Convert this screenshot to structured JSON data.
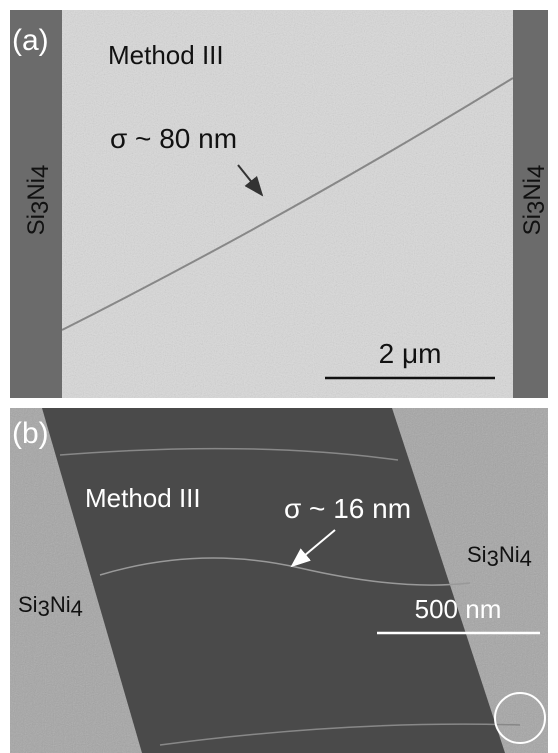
{
  "panels": [
    {
      "label": "(a)",
      "method": "Method III",
      "roughness": "σ ~ 80 nm",
      "left_material": "Si3Ni4",
      "right_material": "Si3Ni4",
      "scale_bar": "2 μm"
    },
    {
      "label": "(b)",
      "method": "Method III",
      "roughness": "σ ~ 16 nm",
      "left_material": "Si3Ni4",
      "right_material": "Si3Ni4",
      "scale_bar": "500 nm"
    }
  ]
}
